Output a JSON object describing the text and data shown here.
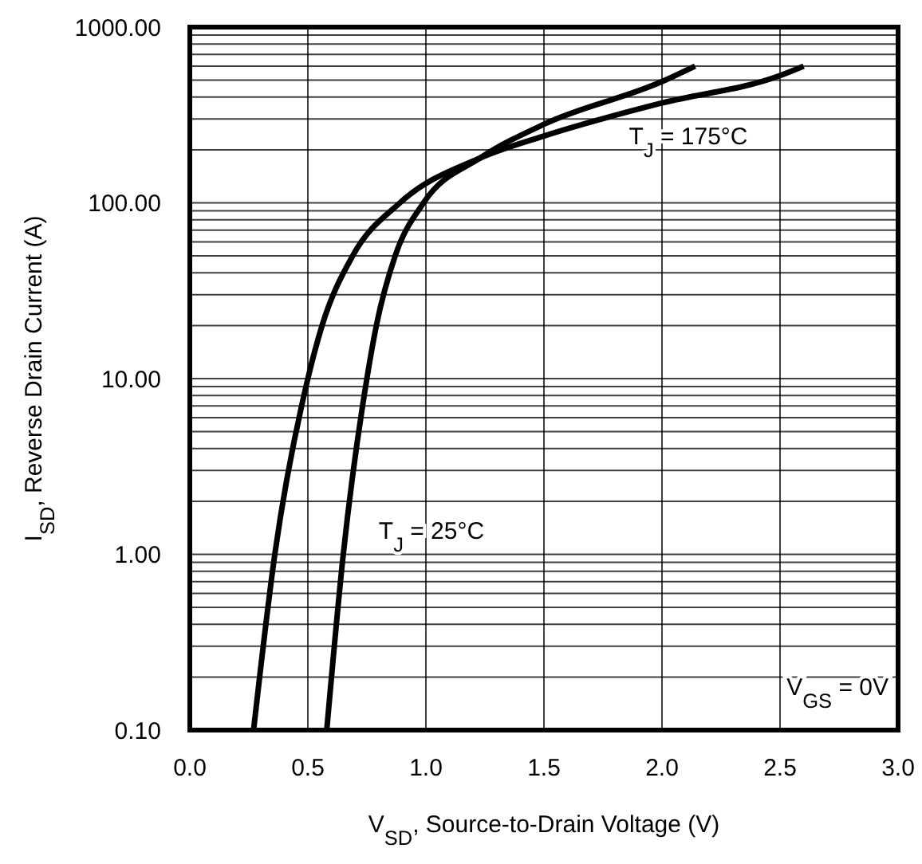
{
  "chart_data": {
    "type": "line",
    "xlabel": "V$_{SD}$, Source-to-Drain Voltage (V)",
    "ylabel": "I$_{SD}$, Reverse Drain Current (A)",
    "log": "y",
    "grid": true,
    "marker": "none",
    "line_style": "solid",
    "xlim": [
      0,
      3
    ],
    "xticks": [
      {
        "value": 0,
        "label": "0.0"
      },
      {
        "value": 0.5,
        "label": "0.5"
      },
      {
        "value": 1,
        "label": "1.0"
      },
      {
        "value": 1.5,
        "label": "1.5"
      },
      {
        "value": 2,
        "label": "2.0"
      },
      {
        "value": 2.5,
        "label": "2.5"
      },
      {
        "value": 3,
        "label": "3.0"
      }
    ],
    "ylim": [
      0.1,
      1000
    ],
    "yticks": [
      {
        "value": 0.1,
        "label": "0.10"
      },
      {
        "value": 1,
        "label": "1.00"
      },
      {
        "value": 10,
        "label": "10.00"
      },
      {
        "value": 100,
        "label": "100.00"
      },
      {
        "value": 1000,
        "label": "1000.00"
      }
    ],
    "series": [
      {
        "name": "T$_{J}$ = 175°C",
        "color": "#000000",
        "x": [
          0.27,
          0.36,
          0.5,
          0.56,
          0.69,
          0.89,
          1.23,
          1.5,
          2.0,
          2.5,
          2.6
        ],
        "values": [
          0.1,
          1,
          10,
          20,
          50,
          100,
          180,
          240,
          370,
          530,
          600
        ]
      },
      {
        "name": "T$_{J}$ = 25°C",
        "color": "#000000",
        "x": [
          0.58,
          0.65,
          0.75,
          0.79,
          0.87,
          0.99,
          1.23,
          1.5,
          2.0,
          2.14
        ],
        "values": [
          0.1,
          1,
          10,
          20,
          50,
          100,
          180,
          280,
          490,
          600
        ]
      }
    ],
    "annotations": [
      "V$_{GS}$ = 0V"
    ]
  }
}
